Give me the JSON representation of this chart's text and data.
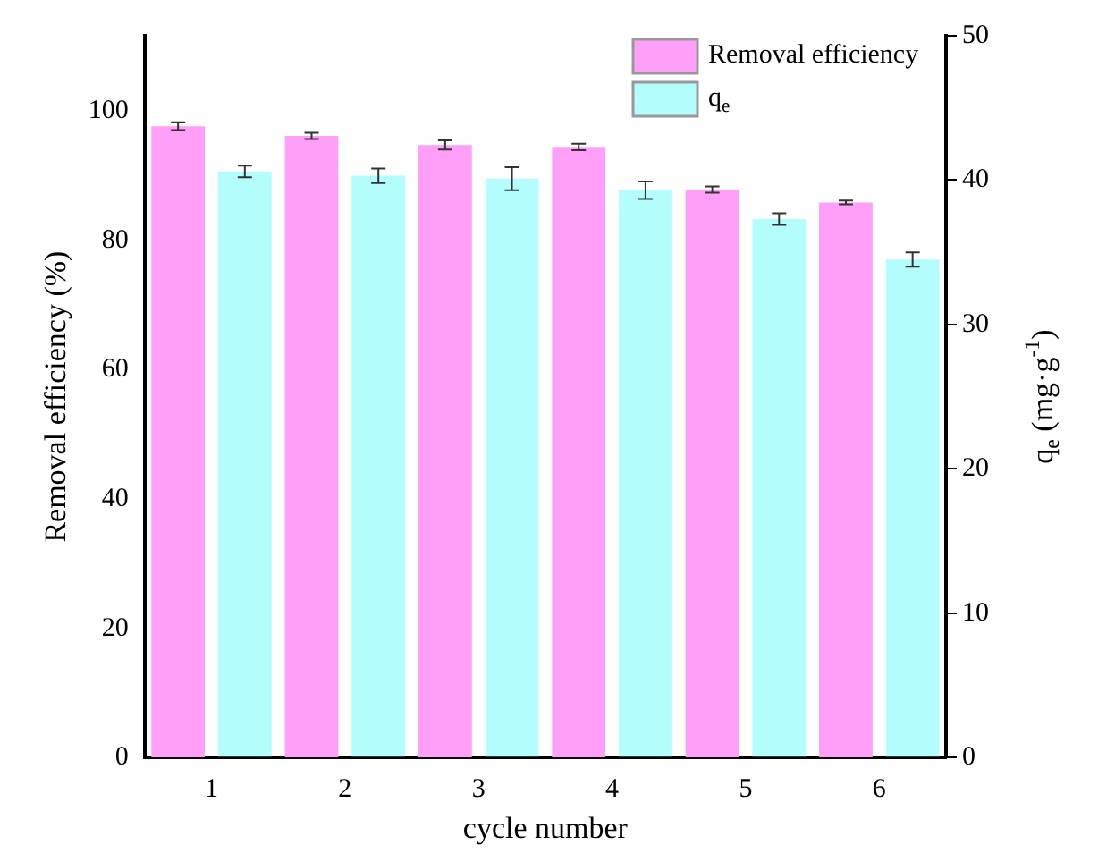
{
  "chart_data": {
    "type": "bar",
    "xlabel": "cycle number",
    "ylabel": "Removal efficiency (%)",
    "y2label": "q$_{e}$ (mg·g$^{-1}$)",
    "categories": [
      "1",
      "2",
      "3",
      "4",
      "5",
      "6"
    ],
    "series": [
      {
        "name": "Removal efficiency",
        "color": "#ff9ff8",
        "values": [
          97.7,
          96.2,
          94.8,
          94.5,
          87.9,
          85.9
        ],
        "errors": [
          0.6,
          0.5,
          0.7,
          0.5,
          0.5,
          0.3
        ]
      },
      {
        "name": "q$_{e}$",
        "color": "#b3fdfd",
        "axis": "y2",
        "values": [
          40.6,
          40.3,
          40.1,
          39.3,
          37.3,
          34.5
        ],
        "errors": [
          0.4,
          0.5,
          0.8,
          0.6,
          0.4,
          0.5
        ]
      }
    ],
    "ylim": [
      0,
      111.7
    ],
    "yticks": [
      0,
      20,
      40,
      60,
      80,
      100
    ],
    "y2lim": [
      0,
      50
    ],
    "y2ticks": [
      0,
      10,
      20,
      30,
      40,
      50
    ],
    "grid": false,
    "legend": "top right"
  }
}
